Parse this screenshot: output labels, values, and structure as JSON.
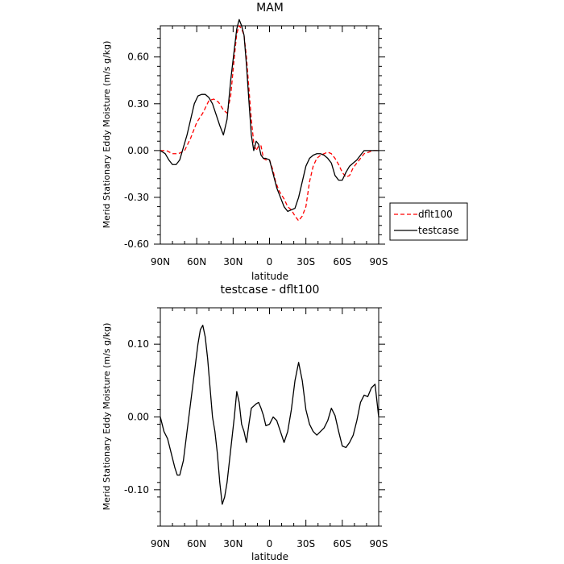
{
  "chart_data": [
    {
      "type": "line",
      "title": "MAM",
      "xlabel": "latitude",
      "ylabel": "Merid Stationary Eddy Moisture (m/s g/kg)",
      "xlim": [
        90,
        -90
      ],
      "ylim": [
        -0.6,
        0.8
      ],
      "x_ticks": [
        90,
        60,
        30,
        0,
        -30,
        -60,
        -90
      ],
      "x_tick_labels": [
        "90N",
        "60N",
        "30N",
        "0",
        "30S",
        "60S",
        "90S"
      ],
      "y_ticks": [
        -0.6,
        -0.3,
        0.0,
        0.3,
        0.6
      ],
      "y_tick_labels": [
        "-0.60",
        "-0.30",
        "0.00",
        "0.30",
        "0.60"
      ],
      "legend": {
        "placement": "right"
      },
      "series": [
        {
          "name": "dflt100",
          "color": "#ff0000",
          "dash": "dashed",
          "x": [
            90,
            85,
            80,
            75,
            70,
            65,
            60,
            55,
            50,
            46,
            42,
            38,
            35,
            32,
            29,
            27,
            25,
            23,
            21,
            19,
            17,
            15,
            13,
            11,
            9,
            7,
            5,
            3,
            0,
            -3,
            -5,
            -8,
            -12,
            -15,
            -18,
            -21,
            -24,
            -27,
            -30,
            -33,
            -36,
            -39,
            -42,
            -45,
            -48,
            -51,
            -54,
            -57,
            -60,
            -63,
            -66,
            -69,
            -72,
            -75,
            -78,
            -82,
            -85,
            -88,
            -90
          ],
          "values": [
            0.0,
            0.0,
            -0.02,
            -0.02,
            0.0,
            0.08,
            0.18,
            0.24,
            0.32,
            0.33,
            0.31,
            0.26,
            0.24,
            0.35,
            0.6,
            0.75,
            0.8,
            0.78,
            0.74,
            0.6,
            0.4,
            0.2,
            0.05,
            0.0,
            0.03,
            0.03,
            -0.05,
            -0.06,
            -0.06,
            -0.13,
            -0.2,
            -0.26,
            -0.31,
            -0.36,
            -0.38,
            -0.42,
            -0.45,
            -0.42,
            -0.36,
            -0.2,
            -0.1,
            -0.05,
            -0.03,
            -0.02,
            -0.01,
            -0.02,
            -0.05,
            -0.09,
            -0.14,
            -0.17,
            -0.16,
            -0.11,
            -0.08,
            -0.05,
            -0.02,
            -0.01,
            0.0,
            0.0,
            0.0
          ]
        },
        {
          "name": "testcase",
          "color": "#000000",
          "dash": "solid",
          "x": [
            90,
            86,
            83,
            80,
            77,
            74,
            71,
            68,
            65,
            62,
            59,
            56,
            53,
            50,
            47,
            44,
            41,
            38,
            35,
            32,
            29,
            27,
            25,
            23,
            21,
            19,
            17,
            15,
            13,
            11,
            9,
            7,
            5,
            3,
            0,
            -3,
            -6,
            -9,
            -12,
            -15,
            -18,
            -21,
            -24,
            -27,
            -30,
            -33,
            -36,
            -39,
            -42,
            -45,
            -48,
            -51,
            -54,
            -57,
            -60,
            -63,
            -66,
            -69,
            -72,
            -75,
            -78,
            -81,
            -84,
            -87,
            -90
          ],
          "values": [
            0.0,
            -0.02,
            -0.06,
            -0.09,
            -0.09,
            -0.06,
            0.02,
            0.1,
            0.2,
            0.3,
            0.35,
            0.36,
            0.36,
            0.34,
            0.3,
            0.23,
            0.16,
            0.1,
            0.2,
            0.45,
            0.65,
            0.78,
            0.84,
            0.8,
            0.74,
            0.55,
            0.32,
            0.1,
            0.0,
            0.06,
            0.04,
            -0.03,
            -0.05,
            -0.05,
            -0.06,
            -0.15,
            -0.24,
            -0.3,
            -0.36,
            -0.39,
            -0.38,
            -0.37,
            -0.3,
            -0.2,
            -0.1,
            -0.05,
            -0.03,
            -0.02,
            -0.02,
            -0.03,
            -0.05,
            -0.08,
            -0.16,
            -0.19,
            -0.19,
            -0.14,
            -0.1,
            -0.08,
            -0.06,
            -0.03,
            0.0,
            0.0,
            0.0,
            0.0,
            0.0
          ]
        }
      ]
    },
    {
      "type": "line",
      "title": "testcase - dflt100",
      "xlabel": "latitude",
      "ylabel": "Merid Stationary Eddy Moisture (m/s g/kg)",
      "xlim": [
        90,
        -90
      ],
      "ylim": [
        -0.15,
        0.15
      ],
      "x_ticks": [
        90,
        60,
        30,
        0,
        -30,
        -60,
        -90
      ],
      "x_tick_labels": [
        "90N",
        "60N",
        "30N",
        "0",
        "30S",
        "60S",
        "90S"
      ],
      "y_ticks": [
        -0.1,
        0.0,
        0.1
      ],
      "y_tick_labels": [
        "-0.10",
        "0.00",
        "0.10"
      ],
      "series": [
        {
          "name": "",
          "color": "#000000",
          "dash": "solid",
          "x": [
            90,
            87,
            84,
            81,
            78,
            76,
            74,
            71,
            68,
            65,
            62,
            59,
            57,
            55,
            53,
            51,
            49,
            47,
            45,
            43,
            41,
            39,
            37,
            35,
            33,
            31,
            29,
            27,
            25,
            23,
            21,
            19,
            17,
            15,
            13,
            11,
            9,
            7,
            5,
            3,
            0,
            -3,
            -6,
            -9,
            -12,
            -15,
            -18,
            -21,
            -24,
            -27,
            -30,
            -33,
            -36,
            -39,
            -42,
            -45,
            -48,
            -51,
            -54,
            -57,
            -60,
            -63,
            -66,
            -69,
            -72,
            -75,
            -78,
            -81,
            -84,
            -87,
            -90
          ],
          "values": [
            0.0,
            -0.02,
            -0.03,
            -0.05,
            -0.07,
            -0.08,
            -0.08,
            -0.06,
            -0.02,
            0.02,
            0.06,
            0.1,
            0.12,
            0.126,
            0.11,
            0.08,
            0.04,
            0.0,
            -0.02,
            -0.05,
            -0.09,
            -0.12,
            -0.11,
            -0.09,
            -0.06,
            -0.03,
            0.0,
            0.035,
            0.02,
            -0.01,
            -0.02,
            -0.035,
            -0.01,
            0.012,
            0.015,
            0.018,
            0.02,
            0.012,
            0.002,
            -0.012,
            -0.01,
            0.0,
            -0.005,
            -0.02,
            -0.035,
            -0.02,
            0.01,
            0.05,
            0.075,
            0.05,
            0.01,
            -0.01,
            -0.02,
            -0.025,
            -0.02,
            -0.015,
            -0.005,
            0.012,
            0.002,
            -0.02,
            -0.04,
            -0.042,
            -0.035,
            -0.025,
            -0.005,
            0.02,
            0.03,
            0.028,
            0.04,
            0.045,
            0.0
          ]
        }
      ]
    }
  ]
}
